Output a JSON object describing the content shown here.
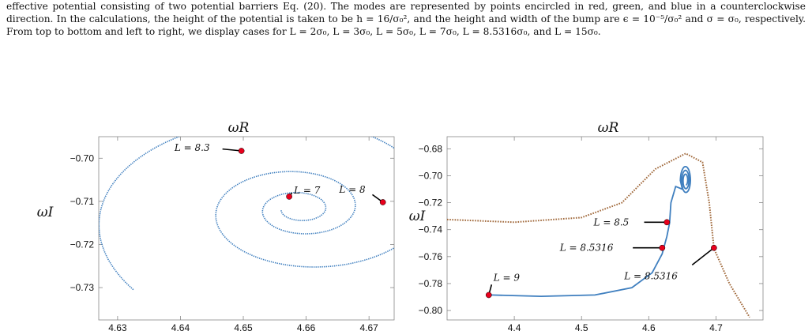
{
  "caption": {
    "line1": "effective potential consisting of two potential barriers Eq. (20). The modes are represented by points encircled in red, green, and blue in",
    "line2": "a counterclockwise direction. In the calculations, the height of the potential is taken to be h = 16/σ₀², and the height and width of the",
    "line3": "bump are ϵ = 10⁻⁵/σ₀² and σ = σ₀, respectively. From top to bottom and left to right, we display cases for L = 2σ₀, L = 3σ₀, L = 5σ₀,",
    "line4": "L = 7σ₀, L = 8.5316σ₀, and L = 15σ₀."
  },
  "colors": {
    "blue": "#3f7fbf",
    "brown": "#a0683a",
    "red": "#e8001c"
  },
  "chart_data": [
    {
      "type": "line",
      "title": "ωR",
      "ylabel": "ωI",
      "xlim": [
        4.627,
        4.674
      ],
      "ylim": [
        -0.7375,
        -0.695
      ],
      "xticks": [
        4.63,
        4.64,
        4.65,
        4.66,
        4.67
      ],
      "yticks": [
        -0.7,
        -0.71,
        -0.72,
        -0.73
      ],
      "xtick_labels": [
        "4.63",
        "4.64",
        "4.65",
        "4.66",
        "4.67"
      ],
      "ytick_labels": [
        "−0.70",
        "−0.71",
        "−0.72",
        "−0.73"
      ],
      "series": [
        {
          "style": "spiral",
          "start": [
            4.6285,
            -0.7355
          ],
          "center": [
            4.659,
            -0.7118
          ]
        }
      ],
      "points": [
        {
          "label": "L = 8.3",
          "x": 4.6497,
          "y": -0.6983
        },
        {
          "label": "L = 7",
          "x": 4.6573,
          "y": -0.7089
        },
        {
          "label": "L = 8",
          "x": 4.6722,
          "y": -0.7102
        }
      ]
    },
    {
      "type": "line",
      "title": "ωR",
      "ylabel": "ωI",
      "xlim": [
        4.3,
        4.77
      ],
      "ylim": [
        -0.807,
        -0.671
      ],
      "xticks": [
        4.4,
        4.5,
        4.6,
        4.7
      ],
      "yticks": [
        -0.68,
        -0.7,
        -0.72,
        -0.74,
        -0.76,
        -0.78,
        -0.8
      ],
      "xtick_labels": [
        "4.4",
        "4.5",
        "4.6",
        "4.7"
      ],
      "ytick_labels": [
        "−0.68",
        "−0.70",
        "−0.72",
        "−0.74",
        "−0.76",
        "−0.78",
        "−0.80"
      ],
      "series": [
        {
          "style": "solid-blue",
          "description_points": [
            [
              4.365,
              -0.7885
            ],
            [
              4.44,
              -0.7895
            ],
            [
              4.52,
              -0.7885
            ],
            [
              4.575,
              -0.783
            ],
            [
              4.605,
              -0.772
            ],
            [
              4.62,
              -0.758
            ],
            [
              4.627,
              -0.745
            ],
            [
              4.631,
              -0.735
            ],
            [
              4.633,
              -0.72
            ],
            [
              4.64,
              -0.708
            ],
            [
              4.65,
              -0.71
            ]
          ]
        },
        {
          "style": "dotted-brown",
          "description_points": [
            [
              4.3,
              -0.7325
            ],
            [
              4.4,
              -0.7345
            ],
            [
              4.5,
              -0.731
            ],
            [
              4.56,
              -0.72
            ],
            [
              4.61,
              -0.695
            ],
            [
              4.655,
              -0.6835
            ],
            [
              4.68,
              -0.69
            ],
            [
              4.69,
              -0.72
            ],
            [
              4.697,
              -0.754
            ],
            [
              4.72,
              -0.78
            ],
            [
              4.75,
              -0.805
            ]
          ]
        }
      ],
      "points": [
        {
          "label": "L = 9",
          "x": 4.362,
          "y": -0.7885
        },
        {
          "label": "L = 8.5316",
          "x": 4.62,
          "y": -0.7535
        },
        {
          "label": "L = 8.5",
          "x": 4.627,
          "y": -0.7345
        },
        {
          "label": "L = 8.5316",
          "x": 4.697,
          "y": -0.7535
        }
      ]
    }
  ]
}
